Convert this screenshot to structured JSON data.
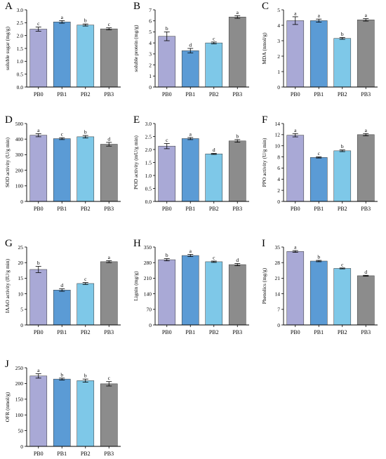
{
  "colors": {
    "PB0": "#a9a9d6",
    "PB1": "#5b9bd5",
    "PB2": "#7ec8e8",
    "PB3": "#8c8c8c",
    "axis": "#000000"
  },
  "chart_data": [
    {
      "type": "bar",
      "panel": "A",
      "title": "",
      "ylabel": "soluble sugar (mg/g)",
      "categories": [
        "PB0",
        "PB1",
        "PB2",
        "PB3"
      ],
      "values": [
        2.25,
        2.53,
        2.41,
        2.26
      ],
      "errors": [
        0.08,
        0.05,
        0.04,
        0.04
      ],
      "letters": [
        "c",
        "a",
        "b",
        "c"
      ],
      "ylim": [
        0,
        3.0
      ],
      "yticks": [
        "0.0",
        "0.5",
        "1.0",
        "1.5",
        "2.0",
        "2.5",
        "3.0"
      ]
    },
    {
      "type": "bar",
      "panel": "B",
      "title": "",
      "ylabel": "soluble protein (mg/g)",
      "categories": [
        "PB0",
        "PB1",
        "PB2",
        "PB3"
      ],
      "values": [
        4.6,
        3.3,
        4.0,
        6.35
      ],
      "errors": [
        0.4,
        0.2,
        0.08,
        0.12
      ],
      "letters": [
        "b",
        "d",
        "c",
        "a"
      ],
      "ylim": [
        0,
        7
      ],
      "yticks": [
        "0",
        "1",
        "2",
        "3",
        "4",
        "5",
        "6",
        "7"
      ]
    },
    {
      "type": "bar",
      "panel": "C",
      "title": "",
      "ylabel": "MDA (nmol/g)",
      "categories": [
        "PB0",
        "PB1",
        "PB2",
        "PB3"
      ],
      "values": [
        4.3,
        4.3,
        3.15,
        4.35
      ],
      "errors": [
        0.25,
        0.1,
        0.06,
        0.08
      ],
      "letters": [
        "a",
        "a",
        "b",
        "a"
      ],
      "ylim": [
        0,
        5
      ],
      "yticks": [
        "0",
        "1",
        "2",
        "3",
        "4",
        "5"
      ]
    },
    {
      "type": "bar",
      "panel": "D",
      "title": "",
      "ylabel": "SOD activity (U/g min)",
      "categories": [
        "PB0",
        "PB1",
        "PB2",
        "PB3"
      ],
      "values": [
        425,
        403,
        415,
        367
      ],
      "errors": [
        10,
        6,
        8,
        12
      ],
      "letters": [
        "a",
        "c",
        "b",
        "d"
      ],
      "ylim": [
        0,
        500
      ],
      "yticks": [
        "0",
        "100",
        "200",
        "300",
        "400",
        "500"
      ]
    },
    {
      "type": "bar",
      "panel": "E",
      "title": "",
      "ylabel": "POD activity (mU/g min)",
      "categories": [
        "PB0",
        "PB1",
        "PB2",
        "PB3"
      ],
      "values": [
        2.13,
        2.42,
        1.83,
        2.33
      ],
      "errors": [
        0.1,
        0.04,
        0.02,
        0.05
      ],
      "letters": [
        "c",
        "a",
        "d",
        "b"
      ],
      "ylim": [
        0,
        3.0
      ],
      "yticks": [
        "0.0",
        "0.5",
        "1.0",
        "1.5",
        "2.0",
        "2.5",
        "3.0"
      ]
    },
    {
      "type": "bar",
      "panel": "F",
      "title": "",
      "ylabel": "PPO activity (U/g min)",
      "categories": [
        "PB0",
        "PB1",
        "PB2",
        "PB3"
      ],
      "values": [
        11.9,
        7.9,
        9.1,
        12.0
      ],
      "errors": [
        0.3,
        0.1,
        0.15,
        0.2
      ],
      "letters": [
        "a",
        "c",
        "b",
        "a"
      ],
      "ylim": [
        0,
        14
      ],
      "yticks": [
        "0",
        "2",
        "4",
        "6",
        "8",
        "10",
        "12",
        "14"
      ]
    },
    {
      "type": "bar",
      "panel": "G",
      "title": "",
      "ylabel": "IAAO activity (IU/g min)",
      "categories": [
        "PB0",
        "PB1",
        "PB2",
        "PB3"
      ],
      "values": [
        17.8,
        11.2,
        13.3,
        20.3
      ],
      "errors": [
        1.0,
        0.4,
        0.3,
        0.3
      ],
      "letters": [
        "b",
        "d",
        "c",
        "a"
      ],
      "ylim": [
        0,
        25
      ],
      "yticks": [
        "0",
        "5",
        "10",
        "15",
        "20",
        "25"
      ]
    },
    {
      "type": "bar",
      "panel": "H",
      "title": "",
      "ylabel": "Lignin (mg/g)",
      "categories": [
        "PB0",
        "PB1",
        "PB2",
        "PB3"
      ],
      "values": [
        293,
        312,
        284,
        271
      ],
      "errors": [
        5,
        5,
        3,
        5
      ],
      "letters": [
        "b",
        "a",
        "c",
        "d"
      ],
      "ylim": [
        0,
        350
      ],
      "yticks": [
        "0",
        "70",
        "140",
        "210",
        "280",
        "350"
      ]
    },
    {
      "type": "bar",
      "panel": "I",
      "title": "",
      "ylabel": "Phenolics (mg/g)",
      "categories": [
        "PB0",
        "PB1",
        "PB2",
        "PB3"
      ],
      "values": [
        33.0,
        28.7,
        25.4,
        22.1
      ],
      "errors": [
        0.4,
        0.3,
        0.2,
        0.2
      ],
      "letters": [
        "a",
        "b",
        "c",
        "d"
      ],
      "ylim": [
        0,
        35
      ],
      "yticks": [
        "0",
        "7",
        "14",
        "21",
        "28",
        "35"
      ]
    },
    {
      "type": "bar",
      "panel": "J",
      "title": "",
      "ylabel": "OFR (nmol/g)",
      "categories": [
        "PB0",
        "PB1",
        "PB2",
        "PB3"
      ],
      "values": [
        224,
        214,
        209,
        199
      ],
      "errors": [
        7,
        3,
        5,
        7
      ],
      "letters": [
        "a",
        "b",
        "b",
        "c"
      ],
      "ylim": [
        0,
        250
      ],
      "yticks": [
        "0",
        "50",
        "100",
        "150",
        "200",
        "250"
      ]
    }
  ]
}
